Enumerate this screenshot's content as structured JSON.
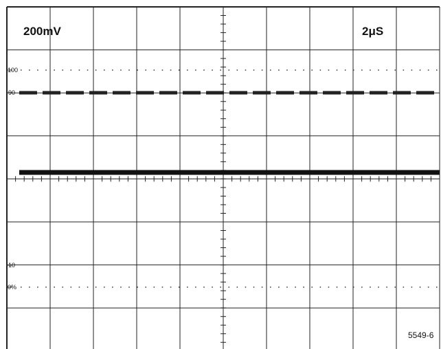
{
  "header": {
    "volts_per_div": "200mV",
    "time_per_div": "2μS"
  },
  "graticule_labels": {
    "top_100": "100",
    "level_90": "90",
    "level_10": "10",
    "bottom_0": "0%"
  },
  "figure_number": "5549-6"
}
